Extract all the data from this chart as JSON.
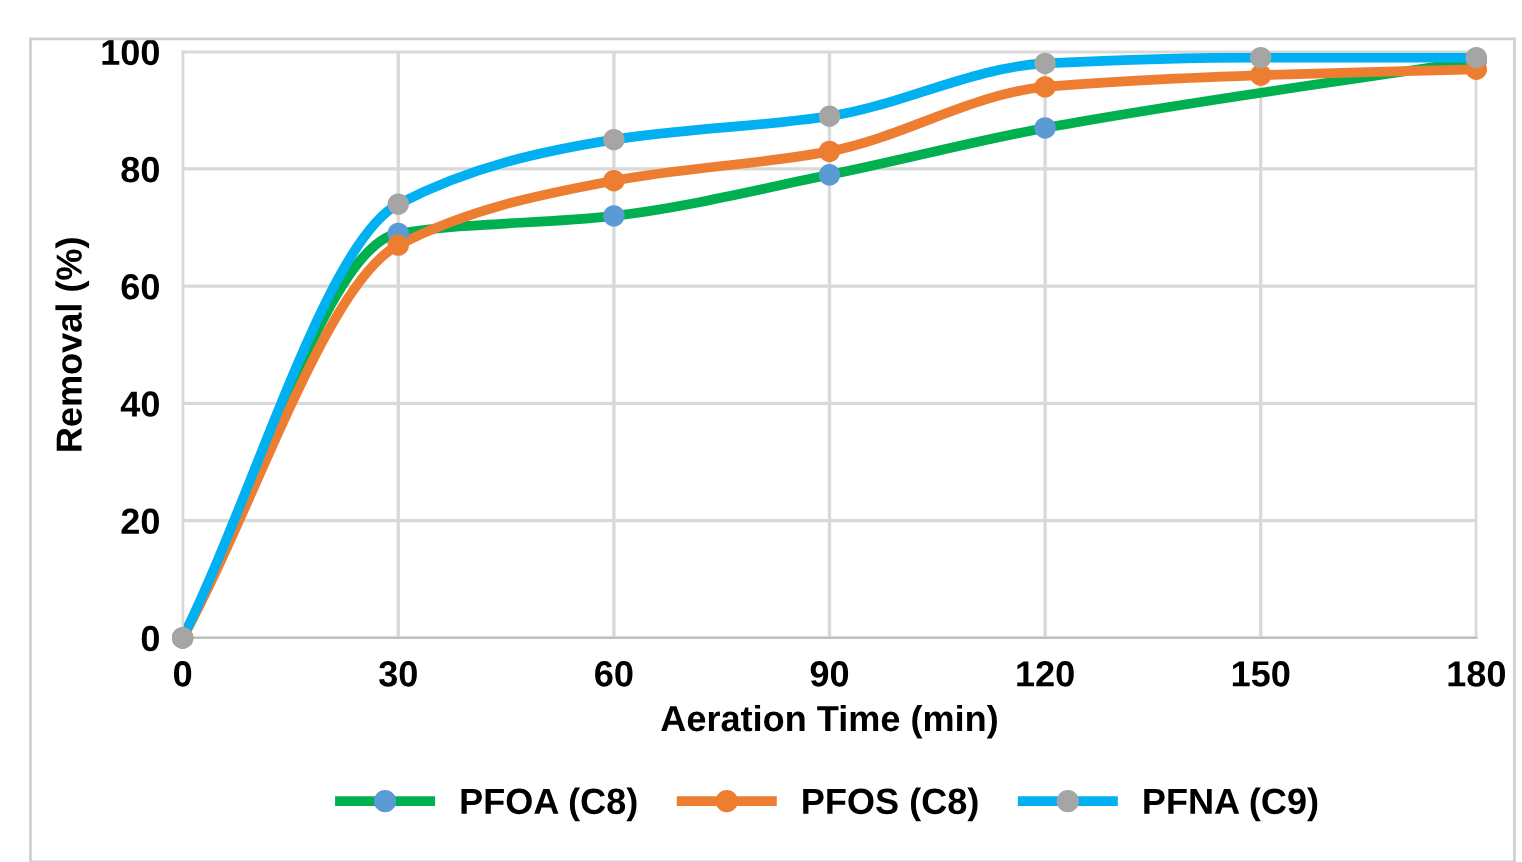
{
  "chart_data": {
    "type": "line",
    "xlabel": "Aeration Time (min)",
    "ylabel": "Removal (%)",
    "x": [
      0,
      30,
      60,
      90,
      120,
      150,
      180
    ],
    "series": [
      {
        "name": "PFOA (C8)",
        "color": "#00b050",
        "colors": [
          "#a5a5a5",
          "#5b9bd5",
          "#5b9bd5",
          "#5b9bd5",
          "#5b9bd5",
          "#5b9bd5",
          "#5b9bd5"
        ],
        "values": [
          0,
          69,
          72,
          79,
          87,
          null,
          98.5
        ]
      },
      {
        "name": "PFOS (C8)",
        "color": "#ed7d31",
        "colors": [
          "#ed7d31",
          "#ed7d31",
          "#ed7d31",
          "#ed7d31",
          "#ed7d31",
          "#ed7d31",
          "#ed7d31"
        ],
        "values": [
          0,
          67,
          78,
          83,
          94,
          96,
          97
        ]
      },
      {
        "name": "PFNA (C9)",
        "color": "#00b0f0",
        "colors": [
          "#a5a5a5",
          "#a5a5a5",
          "#a5a5a5",
          "#a5a5a5",
          "#a5a5a5",
          "#a5a5a5",
          "#a5a5a5"
        ],
        "values": [
          0,
          74,
          85,
          89,
          98,
          99,
          99
        ]
      }
    ],
    "xlim": [
      0,
      180
    ],
    "xticks": [
      0,
      30,
      60,
      90,
      120,
      150,
      180
    ],
    "ylim": [
      0,
      100
    ],
    "yticks": [
      0,
      20,
      40,
      60,
      80,
      100
    ],
    "grid": true,
    "legend": "bottom",
    "marker": "circle",
    "line_style": "solid"
  }
}
